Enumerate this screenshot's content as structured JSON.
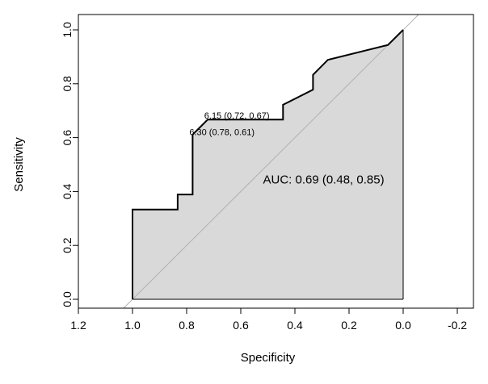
{
  "chart_data": {
    "type": "line",
    "xlabel": "Specificity",
    "ylabel": "Sensitivity",
    "xlim": [
      1.2,
      -0.2
    ],
    "ylim": [
      0.0,
      1.0
    ],
    "x_ticks": [
      {
        "value": 1.2,
        "label": "1.2"
      },
      {
        "value": 1.0,
        "label": "1.0"
      },
      {
        "value": 0.8,
        "label": "0.8"
      },
      {
        "value": 0.6,
        "label": "0.6"
      },
      {
        "value": 0.4,
        "label": "0.4"
      },
      {
        "value": 0.2,
        "label": "0.2"
      },
      {
        "value": 0.0,
        "label": "0.0"
      },
      {
        "value": -0.2,
        "label": "-0.2"
      }
    ],
    "y_ticks": [
      {
        "value": 0.0,
        "label": "0.0"
      },
      {
        "value": 0.2,
        "label": "0.2"
      },
      {
        "value": 0.4,
        "label": "0.4"
      },
      {
        "value": 0.6,
        "label": "0.6"
      },
      {
        "value": 0.8,
        "label": "0.8"
      },
      {
        "value": 1.0,
        "label": "1.0"
      }
    ],
    "roc_curve": {
      "specificity": [
        1.0,
        1.0,
        0.833,
        0.833,
        0.778,
        0.778,
        0.722,
        0.722,
        0.444,
        0.444,
        0.333,
        0.333,
        0.278,
        0.056,
        0.0,
        0.0
      ],
      "sensitivity": [
        0.0,
        0.333,
        0.333,
        0.389,
        0.389,
        0.611,
        0.667,
        0.667,
        0.667,
        0.722,
        0.778,
        0.833,
        0.889,
        0.944,
        1.0,
        0.0
      ]
    },
    "diagonal": {
      "from": [
        1.0,
        0.0
      ],
      "to": [
        0.0,
        1.0
      ],
      "color": "#b0b0b0"
    },
    "fill_color": "#d9d9d9",
    "annotations": [
      {
        "text": "AUC: 0.69 (0.48, 0.85)",
        "x": 0.5,
        "y": 0.43
      },
      {
        "text": "6.15 (0.72, 0.67)",
        "x": 0.735,
        "y": 0.67
      },
      {
        "text": "6.30 (0.78, 0.61)",
        "x": 0.79,
        "y": 0.61
      }
    ],
    "grid": false
  }
}
